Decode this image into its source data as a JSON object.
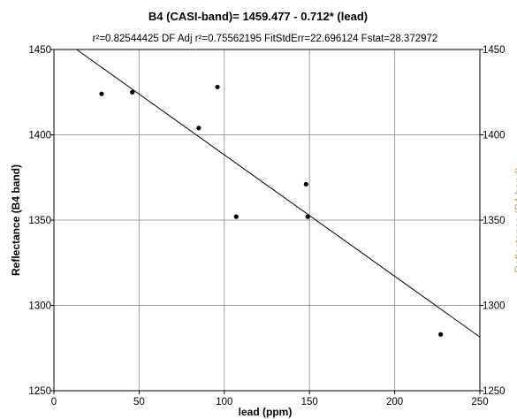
{
  "chart_data": {
    "type": "scatter",
    "title": "B4 (CASI-band)= 1459.477 - 0.712* (lead)",
    "subtitle": "r²=0.82544425  DF Adj r²=0.75562195  FitStdErr=22.696124  Fstat=28.372972",
    "xlabel": "lead (ppm)",
    "ylabel": "Reflectance (B4 band)",
    "xlim": [
      0,
      250
    ],
    "ylim": [
      1250,
      1450
    ],
    "xticks": [
      "0",
      "50",
      "100",
      "150",
      "200",
      "250"
    ],
    "yticks": [
      "1250",
      "1300",
      "1350",
      "1400",
      "1450"
    ],
    "grid": true,
    "points": [
      {
        "x": 28,
        "y": 1424
      },
      {
        "x": 46,
        "y": 1425
      },
      {
        "x": 85,
        "y": 1404
      },
      {
        "x": 96,
        "y": 1428
      },
      {
        "x": 107,
        "y": 1352
      },
      {
        "x": 148,
        "y": 1371
      },
      {
        "x": 149,
        "y": 1352
      },
      {
        "x": 227,
        "y": 1283
      }
    ],
    "fit_line": {
      "intercept": 1459.477,
      "slope": -0.712
    }
  },
  "colors": {
    "points": "#000000",
    "fit_line": "#000000",
    "grid": "#a0a0a0",
    "frame": "#000000",
    "right_label": "#c89a5a"
  }
}
